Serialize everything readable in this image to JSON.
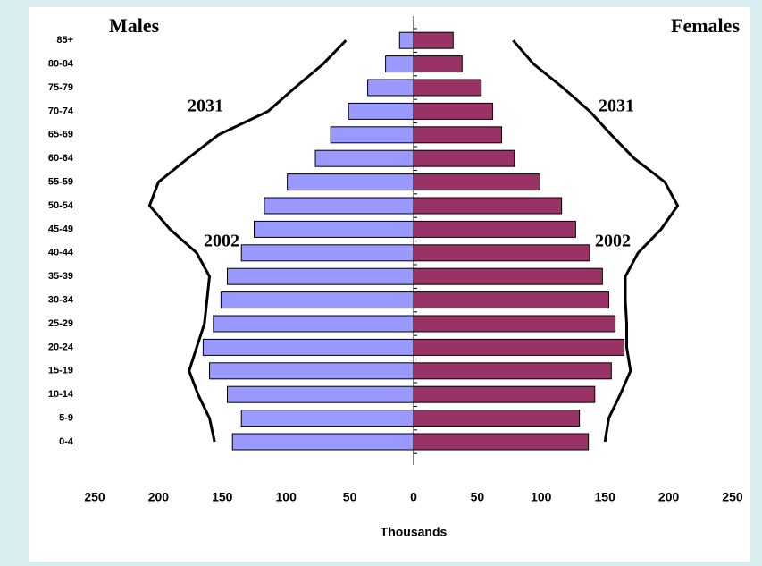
{
  "chart_data": {
    "type": "pyramid",
    "xlabel": "Thousands",
    "categories": [
      "85+",
      "80-84",
      "75-79",
      "70-74",
      "65-69",
      "60-64",
      "55-59",
      "50-54",
      "45-49",
      "40-44",
      "35-39",
      "30-34",
      "25-29",
      "20-24",
      "15-19",
      "10-14",
      "5-9",
      "0-4"
    ],
    "series": [
      {
        "name": "Males",
        "side": "left",
        "color": "#9999ff",
        "values": [
          11,
          22,
          36,
          51,
          65,
          77,
          99,
          117,
          125,
          135,
          146,
          151,
          157,
          165,
          160,
          146,
          135,
          142
        ],
        "line_values": [
          53,
          71,
          93,
          114,
          153,
          177,
          200,
          207,
          191,
          170,
          160,
          162,
          164,
          170,
          176,
          169,
          160,
          156
        ]
      },
      {
        "name": "Females",
        "side": "right",
        "color": "#993366",
        "values": [
          31,
          38,
          53,
          62,
          69,
          79,
          99,
          116,
          127,
          138,
          148,
          153,
          158,
          165,
          155,
          142,
          130,
          137
        ],
        "line_values": [
          78,
          94,
          117,
          138,
          155,
          173,
          197,
          207,
          194,
          176,
          166,
          166,
          167,
          167,
          170,
          162,
          153,
          150
        ]
      }
    ],
    "line_label": "2031",
    "bar_label": "2002",
    "xlim": [
      0,
      250
    ],
    "xticks": [
      0,
      50,
      100,
      150,
      200,
      250
    ]
  }
}
